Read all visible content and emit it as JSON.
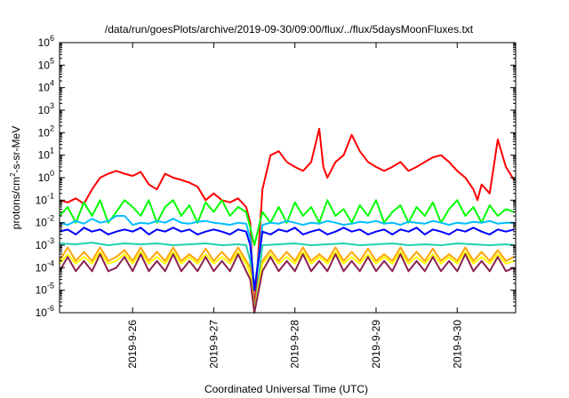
{
  "chart_data": {
    "type": "line",
    "title": "/data/run/goesPlots/archive/2019-09-30/09:00/flux/../flux/5daysMoonFluxes.txt",
    "xlabel": "Coordinated Universal Time (UTC)",
    "ylabel": "protons/cm²-s-sr-MeV",
    "ylabel_parts": {
      "base": "protons/cm",
      "sup": "2",
      "rest": "-s-sr-MeV"
    },
    "x_tick_labels": [
      "2019-9-26",
      "2019-9-27",
      "2019-9-28",
      "2019-9-29",
      "2019-9-30"
    ],
    "x_tick_values": [
      1,
      2,
      3,
      4,
      5
    ],
    "xlim": [
      0.1,
      5.72
    ],
    "x_origin_date": "2019-09-25",
    "y_scale": "log",
    "y_tick_exponents": [
      -6,
      -5,
      -4,
      -3,
      -2,
      -1,
      0,
      1,
      2,
      3,
      4,
      5,
      6
    ],
    "y_tick_base": "10",
    "ylim": [
      1e-06,
      1000000.0
    ],
    "grid": false,
    "legend": "none",
    "series": [
      {
        "color": "#ff0000",
        "x": [
          0.1,
          0.2,
          0.3,
          0.4,
          0.5,
          0.6,
          0.7,
          0.8,
          0.9,
          1.0,
          1.1,
          1.2,
          1.3,
          1.4,
          1.5,
          1.6,
          1.7,
          1.8,
          1.9,
          2.0,
          2.1,
          2.2,
          2.3,
          2.4,
          2.45,
          2.5,
          2.6,
          2.7,
          2.8,
          2.9,
          3.0,
          3.1,
          3.2,
          3.3,
          3.35,
          3.4,
          3.5,
          3.6,
          3.7,
          3.8,
          3.9,
          4.0,
          4.1,
          4.2,
          4.3,
          4.4,
          4.5,
          4.6,
          4.7,
          4.8,
          4.9,
          5.0,
          5.1,
          5.2,
          5.25,
          5.3,
          5.4,
          5.5,
          5.6,
          5.7
        ],
        "values": [
          0.1,
          0.08,
          0.12,
          0.07,
          0.3,
          1,
          1.5,
          2,
          1.5,
          1.2,
          1.8,
          0.5,
          0.3,
          1.5,
          1,
          0.8,
          0.6,
          0.4,
          0.1,
          0.2,
          0.1,
          0.08,
          0.12,
          0.05,
          0.01,
          1e-06,
          0.3,
          10,
          15,
          5,
          3,
          2,
          5,
          150,
          3,
          1,
          5,
          10,
          80,
          15,
          5,
          3,
          2,
          3,
          5,
          2,
          3,
          5,
          8,
          10,
          5,
          2,
          1,
          0.3,
          0.1,
          0.5,
          0.2,
          50,
          3,
          0.8
        ]
      },
      {
        "color": "#00ff00",
        "x": [
          0.1,
          0.2,
          0.3,
          0.4,
          0.5,
          0.6,
          0.7,
          0.8,
          0.9,
          1.0,
          1.1,
          1.2,
          1.3,
          1.4,
          1.5,
          1.6,
          1.7,
          1.8,
          1.9,
          2.0,
          2.1,
          2.2,
          2.3,
          2.4,
          2.45,
          2.5,
          2.6,
          2.7,
          2.8,
          2.9,
          3.0,
          3.1,
          3.2,
          3.3,
          3.4,
          3.5,
          3.6,
          3.7,
          3.8,
          3.9,
          4.0,
          4.1,
          4.2,
          4.3,
          4.4,
          4.5,
          4.6,
          4.7,
          4.8,
          4.9,
          5.0,
          5.1,
          5.2,
          5.3,
          5.4,
          5.5,
          5.6,
          5.7
        ],
        "values": [
          0.02,
          0.05,
          0.01,
          0.08,
          0.02,
          0.1,
          0.01,
          0.03,
          0.1,
          0.05,
          0.02,
          0.1,
          0.01,
          0.05,
          0.1,
          0.02,
          0.06,
          0.01,
          0.08,
          0.03,
          0.1,
          0.02,
          0.05,
          0.03,
          0.006,
          0.001,
          0.03,
          0.01,
          0.05,
          0.01,
          0.08,
          0.02,
          0.05,
          0.01,
          0.1,
          0.02,
          0.04,
          0.01,
          0.06,
          0.02,
          0.1,
          0.01,
          0.03,
          0.06,
          0.01,
          0.05,
          0.02,
          0.08,
          0.01,
          0.04,
          0.1,
          0.02,
          0.05,
          0.01,
          0.06,
          0.02,
          0.04,
          0.03
        ]
      },
      {
        "color": "#00bfff",
        "x": [
          0.1,
          0.2,
          0.3,
          0.4,
          0.5,
          0.6,
          0.7,
          0.8,
          0.9,
          1.0,
          1.1,
          1.2,
          1.3,
          1.4,
          1.5,
          1.6,
          1.7,
          1.8,
          1.9,
          2.0,
          2.1,
          2.2,
          2.3,
          2.4,
          2.45,
          2.5,
          2.6,
          2.7,
          2.8,
          2.9,
          3.0,
          3.1,
          3.2,
          3.3,
          3.4,
          3.5,
          3.6,
          3.7,
          3.8,
          3.9,
          4.0,
          4.1,
          4.2,
          4.3,
          4.4,
          4.5,
          4.6,
          4.7,
          4.8,
          4.9,
          5.0,
          5.1,
          5.2,
          5.3,
          5.4,
          5.5,
          5.6,
          5.7
        ],
        "values": [
          0.01,
          0.008,
          0.012,
          0.009,
          0.015,
          0.01,
          0.012,
          0.02,
          0.02,
          0.008,
          0.01,
          0.009,
          0.012,
          0.01,
          0.015,
          0.01,
          0.009,
          0.011,
          0.012,
          0.01,
          0.009,
          0.008,
          0.01,
          0.009,
          0.002,
          1e-05,
          0.008,
          0.01,
          0.009,
          0.012,
          0.01,
          0.008,
          0.01,
          0.009,
          0.012,
          0.01,
          0.008,
          0.009,
          0.011,
          0.01,
          0.012,
          0.009,
          0.01,
          0.008,
          0.011,
          0.01,
          0.009,
          0.012,
          0.01,
          0.008,
          0.01,
          0.009,
          0.011,
          0.01,
          0.012,
          0.009,
          0.01,
          0.01
        ]
      },
      {
        "color": "#0000ff",
        "x": [
          0.1,
          0.2,
          0.3,
          0.4,
          0.5,
          0.6,
          0.7,
          0.8,
          0.9,
          1.0,
          1.1,
          1.2,
          1.3,
          1.4,
          1.5,
          1.6,
          1.7,
          1.8,
          1.9,
          2.0,
          2.1,
          2.2,
          2.3,
          2.4,
          2.45,
          2.5,
          2.6,
          2.7,
          2.8,
          2.9,
          3.0,
          3.1,
          3.2,
          3.3,
          3.4,
          3.5,
          3.6,
          3.7,
          3.8,
          3.9,
          4.0,
          4.1,
          4.2,
          4.3,
          4.4,
          4.5,
          4.6,
          4.7,
          4.8,
          4.9,
          5.0,
          5.1,
          5.2,
          5.3,
          5.4,
          5.5,
          5.6,
          5.7
        ],
        "values": [
          0.004,
          0.005,
          0.003,
          0.006,
          0.004,
          0.005,
          0.003,
          0.004,
          0.005,
          0.004,
          0.006,
          0.003,
          0.005,
          0.004,
          0.006,
          0.004,
          0.005,
          0.003,
          0.004,
          0.005,
          0.004,
          0.003,
          0.005,
          0.004,
          0.001,
          1e-05,
          0.004,
          0.003,
          0.005,
          0.004,
          0.006,
          0.003,
          0.004,
          0.005,
          0.003,
          0.004,
          0.006,
          0.004,
          0.005,
          0.003,
          0.004,
          0.005,
          0.003,
          0.005,
          0.004,
          0.006,
          0.003,
          0.005,
          0.004,
          0.003,
          0.005,
          0.004,
          0.006,
          0.004,
          0.003,
          0.005,
          0.004,
          0.005
        ]
      },
      {
        "color": "#20d0b0",
        "x": [
          0.1,
          0.3,
          0.5,
          0.7,
          0.9,
          1.1,
          1.3,
          1.5,
          1.7,
          1.9,
          2.1,
          2.3,
          2.4,
          2.45,
          2.5,
          2.6,
          2.8,
          3.0,
          3.2,
          3.4,
          3.6,
          3.8,
          4.0,
          4.2,
          4.4,
          4.6,
          4.8,
          5.0,
          5.2,
          5.4,
          5.6,
          5.7
        ],
        "values": [
          0.0012,
          0.0011,
          0.0013,
          0.001,
          0.0012,
          0.0011,
          0.0012,
          0.001,
          0.0011,
          0.0012,
          0.001,
          0.0011,
          0.001,
          0.0002,
          1e-06,
          0.001,
          0.0011,
          0.0012,
          0.001,
          0.0011,
          0.0012,
          0.001,
          0.0011,
          0.0012,
          0.001,
          0.0011,
          0.001,
          0.0012,
          0.0011,
          0.001,
          0.0011,
          0.001
        ]
      },
      {
        "color": "#ffa500",
        "x": [
          0.1,
          0.2,
          0.3,
          0.4,
          0.5,
          0.6,
          0.7,
          0.8,
          0.9,
          1.0,
          1.1,
          1.2,
          1.3,
          1.4,
          1.5,
          1.6,
          1.7,
          1.8,
          1.9,
          2.0,
          2.1,
          2.2,
          2.3,
          2.4,
          2.45,
          2.5,
          2.6,
          2.7,
          2.8,
          2.9,
          3.0,
          3.1,
          3.2,
          3.3,
          3.4,
          3.5,
          3.6,
          3.7,
          3.8,
          3.9,
          4.0,
          4.1,
          4.2,
          4.3,
          4.4,
          4.5,
          4.6,
          4.7,
          4.8,
          4.9,
          5.0,
          5.1,
          5.2,
          5.3,
          5.4,
          5.5,
          5.6,
          5.7
        ],
        "values": [
          0.0002,
          0.0008,
          0.0002,
          0.0005,
          0.0002,
          0.0008,
          0.0002,
          0.0003,
          0.0006,
          0.0002,
          0.0008,
          0.0002,
          0.0005,
          0.0002,
          0.0008,
          0.0002,
          0.0004,
          0.0002,
          0.0007,
          0.0002,
          0.0005,
          0.0002,
          0.0008,
          0.0002,
          0.0001,
          1e-06,
          0.0002,
          0.0006,
          0.0002,
          0.0005,
          0.0002,
          0.0008,
          0.0002,
          0.0004,
          0.0002,
          0.0008,
          0.0002,
          0.0005,
          0.0002,
          0.0007,
          0.0002,
          0.0004,
          0.0002,
          0.0008,
          0.0002,
          0.0005,
          0.0002,
          0.0007,
          0.0002,
          0.0004,
          0.0002,
          0.0008,
          0.0002,
          0.0005,
          0.0002,
          0.0006,
          0.0002,
          0.0003
        ]
      },
      {
        "color": "#ffff00",
        "x": [
          0.1,
          0.2,
          0.3,
          0.4,
          0.5,
          0.6,
          0.7,
          0.8,
          0.9,
          1.0,
          1.1,
          1.2,
          1.3,
          1.4,
          1.5,
          1.6,
          1.7,
          1.8,
          1.9,
          2.0,
          2.1,
          2.2,
          2.3,
          2.4,
          2.45,
          2.5,
          2.6,
          2.7,
          2.8,
          2.9,
          3.0,
          3.1,
          3.2,
          3.3,
          3.4,
          3.5,
          3.6,
          3.7,
          3.8,
          3.9,
          4.0,
          4.1,
          4.2,
          4.3,
          4.4,
          4.5,
          4.6,
          4.7,
          4.8,
          4.9,
          5.0,
          5.1,
          5.2,
          5.3,
          5.4,
          5.5,
          5.6,
          5.7
        ],
        "values": [
          0.00015,
          0.0004,
          0.00015,
          0.0003,
          0.00015,
          0.0005,
          0.00015,
          0.0002,
          0.0004,
          0.00015,
          0.0005,
          0.00015,
          0.0003,
          0.00015,
          0.0005,
          0.00015,
          0.0003,
          0.00015,
          0.0004,
          0.00015,
          0.0003,
          0.00015,
          0.0005,
          0.00015,
          5e-05,
          1e-06,
          0.00015,
          0.0004,
          0.00015,
          0.0003,
          0.00015,
          0.0005,
          0.00015,
          0.0003,
          0.00015,
          0.0005,
          0.00015,
          0.0003,
          0.00015,
          0.0004,
          0.00015,
          0.0003,
          0.00015,
          0.0005,
          0.00015,
          0.0003,
          0.00015,
          0.0004,
          0.00015,
          0.0003,
          0.00015,
          0.0005,
          0.00015,
          0.0003,
          0.00015,
          0.0004,
          0.00015,
          0.0002
        ]
      },
      {
        "color": "#8b2252",
        "x": [
          0.1,
          0.2,
          0.3,
          0.4,
          0.5,
          0.6,
          0.7,
          0.8,
          0.9,
          1.0,
          1.1,
          1.2,
          1.3,
          1.4,
          1.5,
          1.6,
          1.7,
          1.8,
          1.9,
          2.0,
          2.1,
          2.2,
          2.3,
          2.4,
          2.45,
          2.5,
          2.6,
          2.7,
          2.8,
          2.9,
          3.0,
          3.1,
          3.2,
          3.3,
          3.4,
          3.5,
          3.6,
          3.7,
          3.8,
          3.9,
          4.0,
          4.1,
          4.2,
          4.3,
          4.4,
          4.5,
          4.6,
          4.7,
          4.8,
          4.9,
          5.0,
          5.1,
          5.2,
          5.3,
          5.4,
          5.5,
          5.6,
          5.7
        ],
        "values": [
          7e-05,
          0.0003,
          7e-05,
          0.0002,
          7e-05,
          0.0004,
          7e-05,
          0.0001,
          0.0003,
          7e-05,
          0.0004,
          7e-05,
          0.0002,
          7e-05,
          0.0004,
          7e-05,
          0.0002,
          7e-05,
          0.0003,
          7e-05,
          0.0002,
          7e-05,
          0.0004,
          7e-05,
          3e-05,
          1e-06,
          7e-05,
          0.0003,
          7e-05,
          0.0002,
          7e-05,
          0.0004,
          7e-05,
          0.0002,
          7e-05,
          0.0004,
          7e-05,
          0.0002,
          7e-05,
          0.0003,
          7e-05,
          0.0002,
          7e-05,
          0.0004,
          7e-05,
          0.0002,
          7e-05,
          0.0003,
          7e-05,
          0.0002,
          7e-05,
          0.0004,
          7e-05,
          0.0002,
          7e-05,
          0.0003,
          7e-05,
          0.0001
        ]
      }
    ]
  }
}
